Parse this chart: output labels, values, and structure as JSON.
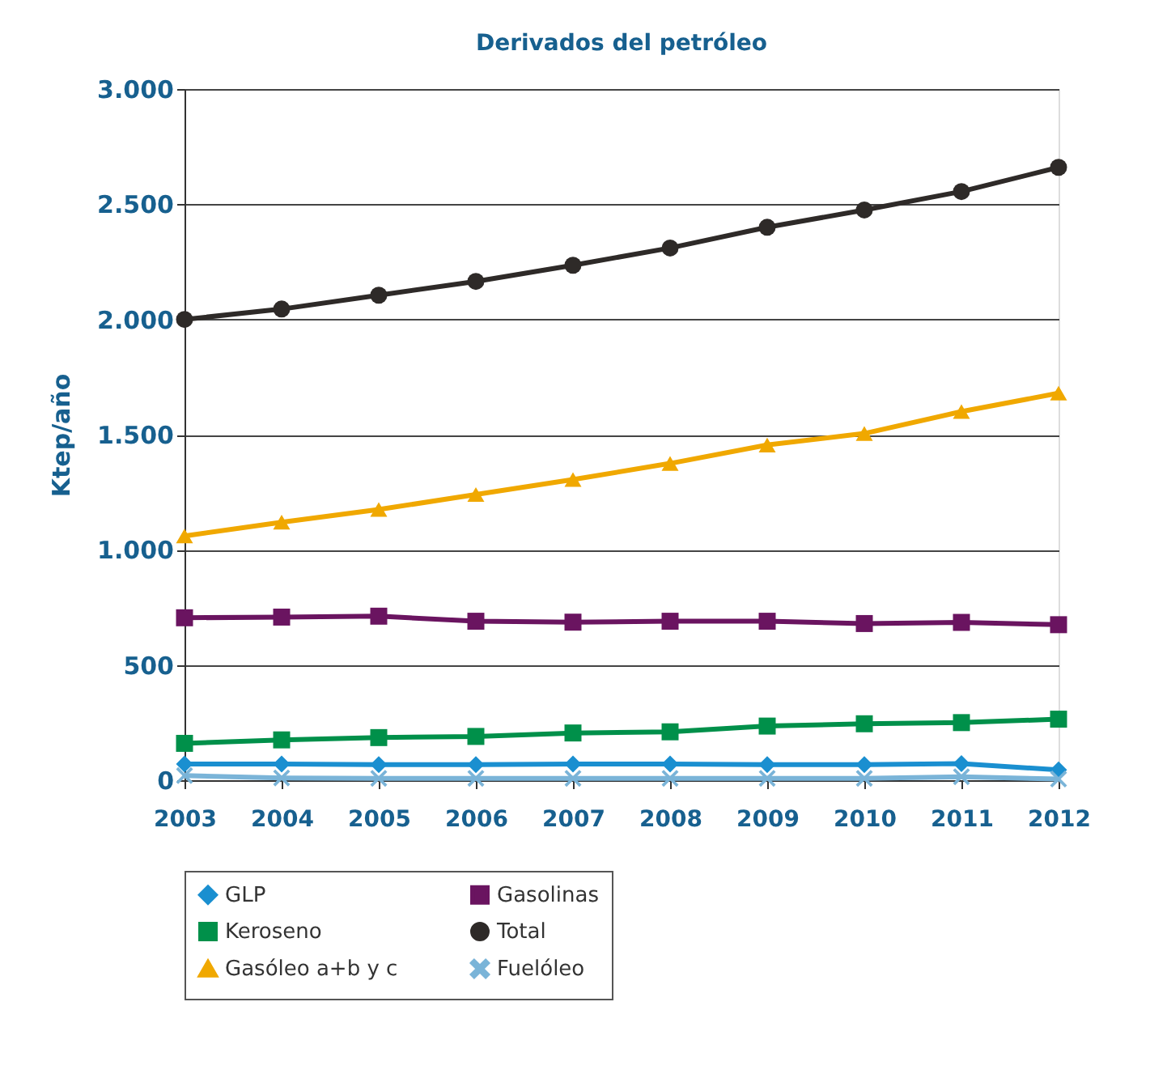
{
  "chart_data": {
    "type": "line",
    "title": "Derivados del petróleo",
    "ylabel": "Ktep/año",
    "categories": [
      "2003",
      "2004",
      "2005",
      "2006",
      "2007",
      "2008",
      "2009",
      "2010",
      "2011",
      "2012"
    ],
    "ylim": [
      0,
      3000
    ],
    "yticks": [
      0,
      500,
      {
        "value": 1000,
        "label": "1.000"
      },
      {
        "value": 1500,
        "label": "1.500"
      },
      {
        "value": 2000,
        "label": "2.000"
      },
      {
        "value": 2500,
        "label": "2.500"
      },
      {
        "value": 3000,
        "label": "3.000"
      }
    ],
    "grid": "y",
    "legend": "bottom",
    "line_style": "solid",
    "series": [
      {
        "name": "GLP",
        "color": "#1a8fd0",
        "marker": "diamond",
        "values": [
          70,
          70,
          68,
          68,
          70,
          70,
          68,
          68,
          72,
          45
        ]
      },
      {
        "name": "Keroseno",
        "color": "#00904a",
        "marker": "square",
        "values": [
          160,
          175,
          185,
          190,
          205,
          210,
          235,
          245,
          250,
          265
        ]
      },
      {
        "name": "Gasóleo a+b y c",
        "color": "#f0a800",
        "marker": "triangle",
        "values": [
          1060,
          1120,
          1175,
          1240,
          1305,
          1375,
          1455,
          1505,
          1600,
          1680
        ]
      },
      {
        "name": "Gasolinas",
        "color": "#6a1460",
        "marker": "square",
        "values": [
          705,
          708,
          712,
          690,
          686,
          690,
          690,
          680,
          685,
          675
        ]
      },
      {
        "name": "Total",
        "color": "#2e2a28",
        "marker": "circle",
        "values": [
          2000,
          2045,
          2105,
          2165,
          2235,
          2310,
          2400,
          2475,
          2555,
          2660
        ]
      },
      {
        "name": "Fuelóleo",
        "color": "#7ab4d8",
        "marker": "cross",
        "values": [
          20,
          10,
          8,
          8,
          8,
          8,
          8,
          8,
          15,
          5
        ]
      }
    ]
  }
}
